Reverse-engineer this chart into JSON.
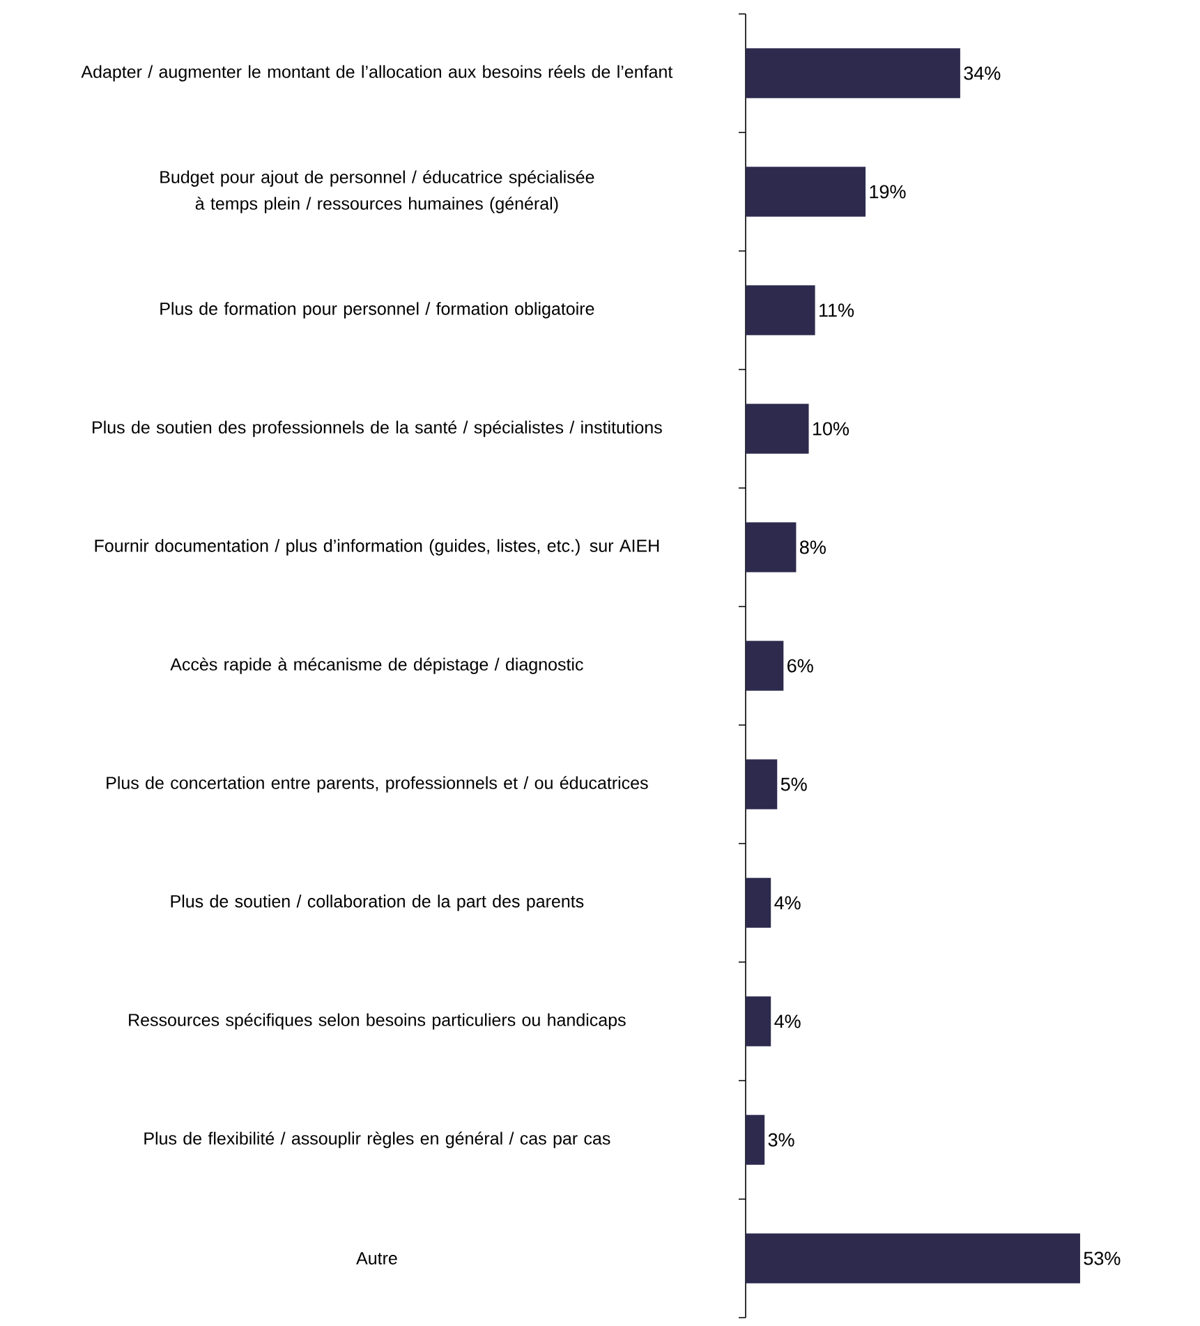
{
  "chart_data": {
    "type": "bar",
    "orientation": "horizontal",
    "color": "#2d2a4e",
    "data_labels": true,
    "categories": [
      "Adapter / augmenter le montant de l’allocation aux besoins réels de l’enfant",
      "Budget pour ajout de personnel / éducatrice spécialisée à temps plein / ressources humaines (général)",
      "Plus de formation pour personnel / formation obligatoire",
      "Plus de soutien des professionnels de la santé / spécialistes / institutions",
      "Fournir documentation / plus d’information (guides, listes, etc.) sur AIEH",
      "Accès rapide à mécanisme de dépistage / diagnostic",
      "Plus de concertation entre parents, professionnels et / ou éducatrices",
      "Plus de soutien / collaboration de la part des parents",
      "Ressources spécifiques selon besoins particuliers ou handicaps",
      "Plus de flexibilité / assouplir règles en général / cas par cas",
      "Autre"
    ],
    "values": [
      34,
      19,
      11,
      10,
      8,
      6,
      5,
      4,
      4,
      3,
      53
    ],
    "value_labels": [
      "34%",
      "19%",
      "11%",
      "10%",
      "8%",
      "6%",
      "5%",
      "4%",
      "4%",
      "3%",
      "53%"
    ]
  }
}
